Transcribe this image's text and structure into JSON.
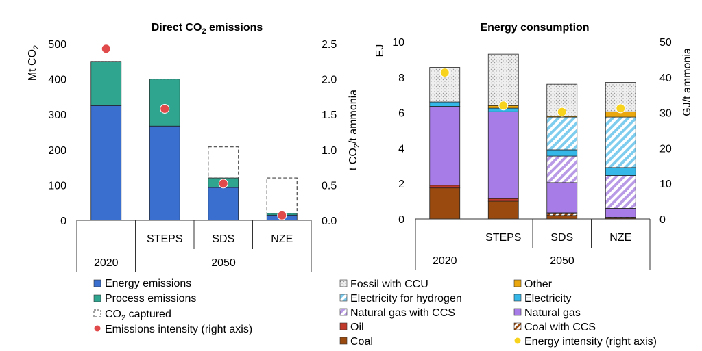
{
  "colors": {
    "energy_emissions": "#3a6fd0",
    "process_emissions": "#2fa58f",
    "captured_border": "#444444",
    "emissions_intensity": "#e04a4a",
    "fossil_ccu": "#e3e3e3",
    "electricity_h2": "#9ed9f2",
    "natural_gas_ccs": "#c9b3ec",
    "oil": "#c0392b",
    "coal": "#9a4a0e",
    "other": "#eba70e",
    "electricity": "#35b8e8",
    "natural_gas": "#a77ce6",
    "coal_ccs": "#c7a489",
    "energy_intensity": "#f7d31e"
  },
  "chart_data": [
    {
      "type": "bar",
      "stacked": true,
      "title_main": "Direct CO",
      "title_sub": "2",
      "title_tail": " emissions",
      "categories": [
        "2020",
        "STEPS",
        "SDS",
        "NZE"
      ],
      "category_group": "2050",
      "ylabel_left_main": "Mt CO",
      "ylabel_left_sub": "2",
      "ylabel_right_prefix": "t CO",
      "ylabel_right_sub": "2",
      "ylabel_right_tail": "/t ammonia",
      "ylim": [
        0,
        500
      ],
      "y2lim": [
        0,
        2.5
      ],
      "yticks": [
        "0",
        "100",
        "200",
        "300",
        "400",
        "500"
      ],
      "y2ticks": [
        "0.0",
        "0.5",
        "1.0",
        "1.5",
        "2.0",
        "2.5"
      ],
      "series": [
        {
          "name": "Energy emissions",
          "values": [
            325,
            267,
            93,
            15
          ]
        },
        {
          "name": "Process emissions",
          "values": [
            125,
            133,
            27,
            5
          ]
        },
        {
          "name": "CO₂ captured",
          "values": [
            0,
            0,
            88,
            100
          ]
        }
      ],
      "intensity": {
        "name": "Emissions intensity (right axis)",
        "values": [
          2.43,
          1.58,
          0.52,
          0.07
        ]
      },
      "legend": [
        {
          "label": "Energy emissions"
        },
        {
          "label": "Process emissions"
        },
        {
          "label_main": "CO",
          "label_sub": "2",
          "label_tail": " captured"
        },
        {
          "label": "Emissions intensity (right axis)"
        }
      ]
    },
    {
      "type": "bar",
      "stacked": true,
      "title": "Energy consumption",
      "categories": [
        "2020",
        "STEPS",
        "SDS",
        "NZE"
      ],
      "category_group": "2050",
      "ylabel_left": "EJ",
      "ylabel_right": "GJ/t ammonia",
      "ylim": [
        0,
        10
      ],
      "y2lim": [
        0,
        50
      ],
      "yticks": [
        "0",
        "2",
        "4",
        "6",
        "8",
        "10"
      ],
      "y2ticks": [
        "0",
        "10",
        "20",
        "30",
        "40",
        "50"
      ],
      "series": [
        {
          "name": "Coal",
          "values": [
            1.75,
            1.0,
            0.2,
            0.05
          ]
        },
        {
          "name": "Coal with CCS",
          "values": [
            0,
            0,
            0.1,
            0.05
          ]
        },
        {
          "name": "Oil",
          "values": [
            0.15,
            0.15,
            0.05,
            0.0
          ]
        },
        {
          "name": "Natural gas",
          "values": [
            4.45,
            4.9,
            1.7,
            0.5
          ]
        },
        {
          "name": "Natural gas with CCS",
          "values": [
            0,
            0,
            1.5,
            1.85
          ]
        },
        {
          "name": "Electricity",
          "values": [
            0.25,
            0.2,
            0.35,
            0.45
          ]
        },
        {
          "name": "Electricity for hydrogen",
          "values": [
            0,
            0,
            1.85,
            2.85
          ]
        },
        {
          "name": "Other",
          "values": [
            0,
            0.15,
            0.05,
            0.3
          ]
        },
        {
          "name": "Fossil with CCU",
          "values": [
            1.95,
            2.9,
            1.8,
            1.65
          ]
        }
      ],
      "intensity": {
        "name": "Energy intensity (right axis)",
        "values": [
          41.3,
          32.0,
          30.2,
          31.2
        ]
      },
      "legend": [
        {
          "label": "Fossil with CCU"
        },
        {
          "label": "Other"
        },
        {
          "label": "Electricity for hydrogen"
        },
        {
          "label": "Electricity"
        },
        {
          "label": "Natural gas with CCS"
        },
        {
          "label": "Natural gas"
        },
        {
          "label": "Oil"
        },
        {
          "label": "Coal with CCS"
        },
        {
          "label": "Coal"
        },
        {
          "label": "Energy intensity (right axis)"
        }
      ]
    }
  ]
}
